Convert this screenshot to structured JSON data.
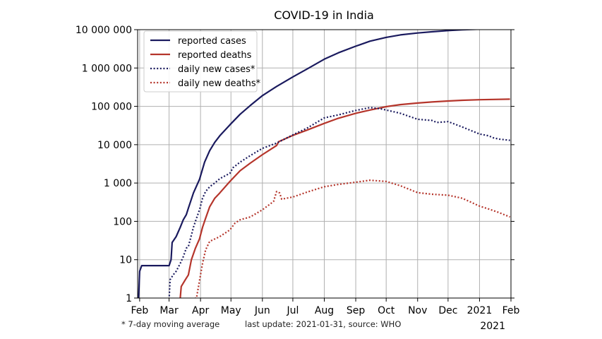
{
  "chart_data": {
    "type": "line",
    "title": "COVID-19 in India",
    "y_scale": "log",
    "ylim": [
      1,
      10000000
    ],
    "y_ticks": [
      {
        "value": 1,
        "label": "1"
      },
      {
        "value": 10,
        "label": "10"
      },
      {
        "value": 100,
        "label": "100"
      },
      {
        "value": 1000,
        "label": "1 000"
      },
      {
        "value": 10000,
        "label": "10 000"
      },
      {
        "value": 100000,
        "label": "100 000"
      },
      {
        "value": 1000000,
        "label": "1 000 000"
      },
      {
        "value": 10000000,
        "label": "10 000 000"
      }
    ],
    "xlim": [
      "2020-01-30",
      "2021-02-01"
    ],
    "x_ticks": [
      {
        "date": "2020-02-01",
        "label": "Feb"
      },
      {
        "date": "2020-03-01",
        "label": "Mar"
      },
      {
        "date": "2020-04-01",
        "label": "Apr"
      },
      {
        "date": "2020-05-01",
        "label": "May"
      },
      {
        "date": "2020-06-01",
        "label": "Jun"
      },
      {
        "date": "2020-07-01",
        "label": "Jul"
      },
      {
        "date": "2020-08-01",
        "label": "Aug"
      },
      {
        "date": "2020-09-01",
        "label": "Sep"
      },
      {
        "date": "2020-10-01",
        "label": "Oct"
      },
      {
        "date": "2020-11-01",
        "label": "Nov"
      },
      {
        "date": "2020-12-01",
        "label": "Dec"
      },
      {
        "date": "2021-01-01",
        "label": "2021"
      },
      {
        "date": "2021-02-01",
        "label": "Feb"
      }
    ],
    "x_year_label": "2021",
    "grid": true,
    "legend_position": "top-left",
    "series": [
      {
        "name": "reported cases",
        "color": "#1a1a5e",
        "style": "solid",
        "points": [
          [
            "2020-01-30",
            1
          ],
          [
            "2020-01-31",
            1
          ],
          [
            "2020-02-01",
            5
          ],
          [
            "2020-02-03",
            7
          ],
          [
            "2020-02-28",
            7
          ],
          [
            "2020-03-01",
            7
          ],
          [
            "2020-03-03",
            10
          ],
          [
            "2020-03-04",
            28
          ],
          [
            "2020-03-08",
            40
          ],
          [
            "2020-03-12",
            70
          ],
          [
            "2020-03-15",
            110
          ],
          [
            "2020-03-18",
            150
          ],
          [
            "2020-03-20",
            220
          ],
          [
            "2020-03-25",
            550
          ],
          [
            "2020-03-31",
            1250
          ],
          [
            "2020-04-05",
            3500
          ],
          [
            "2020-04-10",
            7000
          ],
          [
            "2020-04-15",
            11500
          ],
          [
            "2020-04-20",
            17000
          ],
          [
            "2020-04-30",
            33000
          ],
          [
            "2020-05-10",
            62000
          ],
          [
            "2020-05-20",
            105000
          ],
          [
            "2020-06-01",
            190000
          ],
          [
            "2020-06-15",
            330000
          ],
          [
            "2020-07-01",
            585000
          ],
          [
            "2020-07-15",
            940000
          ],
          [
            "2020-08-01",
            1700000
          ],
          [
            "2020-08-15",
            2500000
          ],
          [
            "2020-09-01",
            3700000
          ],
          [
            "2020-09-15",
            5000000
          ],
          [
            "2020-10-01",
            6300000
          ],
          [
            "2020-10-15",
            7300000
          ],
          [
            "2020-11-01",
            8200000
          ],
          [
            "2020-11-15",
            8800000
          ],
          [
            "2020-12-01",
            9450000
          ],
          [
            "2020-12-15",
            9900000
          ],
          [
            "2021-01-01",
            10300000
          ],
          [
            "2021-01-31",
            10750000
          ]
        ]
      },
      {
        "name": "reported deaths",
        "color": "#b5352b",
        "style": "solid",
        "points": [
          [
            "2020-03-12",
            1
          ],
          [
            "2020-03-13",
            2
          ],
          [
            "2020-03-17",
            3
          ],
          [
            "2020-03-20",
            4
          ],
          [
            "2020-03-23",
            10
          ],
          [
            "2020-03-27",
            20
          ],
          [
            "2020-03-31",
            35
          ],
          [
            "2020-04-03",
            70
          ],
          [
            "2020-04-06",
            120
          ],
          [
            "2020-04-10",
            240
          ],
          [
            "2020-04-15",
            400
          ],
          [
            "2020-04-20",
            550
          ],
          [
            "2020-04-30",
            1100
          ],
          [
            "2020-05-10",
            2100
          ],
          [
            "2020-05-20",
            3300
          ],
          [
            "2020-06-01",
            5500
          ],
          [
            "2020-06-15",
            9500
          ],
          [
            "2020-06-17",
            12000
          ],
          [
            "2020-07-01",
            17500
          ],
          [
            "2020-07-15",
            24000
          ],
          [
            "2020-08-01",
            36000
          ],
          [
            "2020-08-15",
            49000
          ],
          [
            "2020-09-01",
            66000
          ],
          [
            "2020-09-15",
            80000
          ],
          [
            "2020-10-01",
            98000
          ],
          [
            "2020-10-15",
            111000
          ],
          [
            "2020-11-01",
            122000
          ],
          [
            "2020-11-15",
            130000
          ],
          [
            "2020-12-01",
            138000
          ],
          [
            "2020-12-15",
            144000
          ],
          [
            "2021-01-01",
            149000
          ],
          [
            "2021-01-31",
            154000
          ]
        ]
      },
      {
        "name": "daily new cases*",
        "color": "#1a1a5e",
        "style": "dotted",
        "points": [
          [
            "2020-01-30",
            1
          ],
          [
            "2020-02-01",
            0.9
          ],
          [
            "2020-03-01",
            0.9
          ],
          [
            "2020-03-02",
            3
          ],
          [
            "2020-03-05",
            4
          ],
          [
            "2020-03-08",
            5
          ],
          [
            "2020-03-12",
            8
          ],
          [
            "2020-03-15",
            12
          ],
          [
            "2020-03-18",
            20
          ],
          [
            "2020-03-20",
            22
          ],
          [
            "2020-03-22",
            35
          ],
          [
            "2020-03-25",
            70
          ],
          [
            "2020-03-28",
            120
          ],
          [
            "2020-03-31",
            200
          ],
          [
            "2020-04-03",
            400
          ],
          [
            "2020-04-06",
            600
          ],
          [
            "2020-04-10",
            800
          ],
          [
            "2020-04-15",
            1000
          ],
          [
            "2020-04-20",
            1300
          ],
          [
            "2020-04-30",
            1800
          ],
          [
            "2020-05-03",
            2500
          ],
          [
            "2020-05-10",
            3500
          ],
          [
            "2020-05-20",
            5200
          ],
          [
            "2020-06-01",
            8000
          ],
          [
            "2020-06-15",
            11000
          ],
          [
            "2020-07-01",
            18000
          ],
          [
            "2020-07-15",
            27000
          ],
          [
            "2020-08-01",
            50000
          ],
          [
            "2020-08-15",
            60000
          ],
          [
            "2020-09-01",
            78000
          ],
          [
            "2020-09-15",
            93000
          ],
          [
            "2020-09-25",
            87000
          ],
          [
            "2020-10-01",
            80000
          ],
          [
            "2020-10-15",
            66000
          ],
          [
            "2020-11-01",
            46000
          ],
          [
            "2020-11-15",
            43000
          ],
          [
            "2020-11-20",
            38000
          ],
          [
            "2020-12-01",
            40000
          ],
          [
            "2020-12-15",
            29000
          ],
          [
            "2021-01-01",
            19000
          ],
          [
            "2021-01-10",
            17000
          ],
          [
            "2021-01-15",
            15000
          ],
          [
            "2021-01-20",
            14000
          ],
          [
            "2021-01-31",
            13000
          ]
        ]
      },
      {
        "name": "daily new deaths*",
        "color": "#b5352b",
        "style": "dotted",
        "points": [
          [
            "2020-03-20",
            0.9
          ],
          [
            "2020-03-28",
            1
          ],
          [
            "2020-04-01",
            4
          ],
          [
            "2020-04-03",
            8
          ],
          [
            "2020-04-06",
            18
          ],
          [
            "2020-04-10",
            30
          ],
          [
            "2020-04-20",
            40
          ],
          [
            "2020-04-30",
            60
          ],
          [
            "2020-05-05",
            90
          ],
          [
            "2020-05-10",
            110
          ],
          [
            "2020-05-20",
            130
          ],
          [
            "2020-06-01",
            200
          ],
          [
            "2020-06-12",
            330
          ],
          [
            "2020-06-15",
            600
          ],
          [
            "2020-06-18",
            550
          ],
          [
            "2020-06-20",
            380
          ],
          [
            "2020-07-01",
            430
          ],
          [
            "2020-07-15",
            580
          ],
          [
            "2020-08-01",
            800
          ],
          [
            "2020-08-15",
            920
          ],
          [
            "2020-09-01",
            1050
          ],
          [
            "2020-09-15",
            1180
          ],
          [
            "2020-10-01",
            1100
          ],
          [
            "2020-10-15",
            850
          ],
          [
            "2020-11-01",
            560
          ],
          [
            "2020-11-15",
            510
          ],
          [
            "2020-12-01",
            480
          ],
          [
            "2020-12-15",
            400
          ],
          [
            "2021-01-01",
            250
          ],
          [
            "2021-01-10",
            210
          ],
          [
            "2021-01-20",
            170
          ],
          [
            "2021-01-31",
            130
          ]
        ]
      }
    ],
    "annotations": [
      "* 7-day moving average",
      "last update: 2021-01-31, source: WHO"
    ]
  }
}
